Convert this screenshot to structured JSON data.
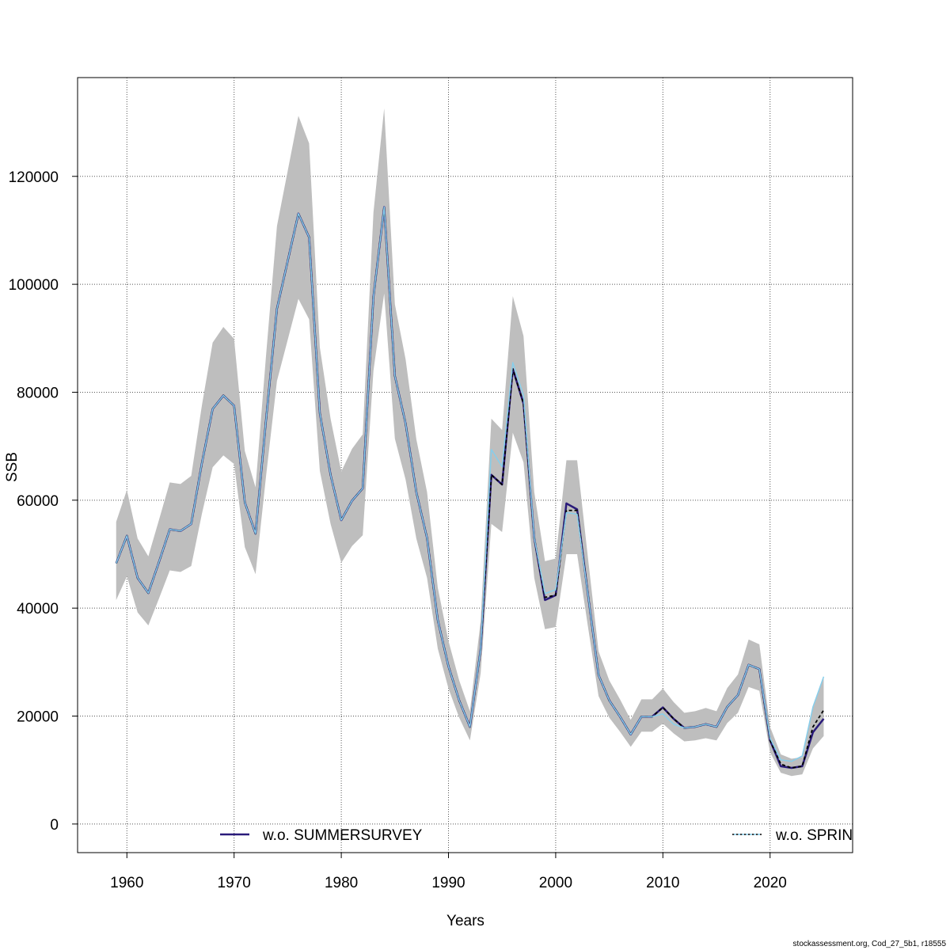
{
  "chart_data": {
    "type": "line",
    "title": "",
    "xlabel": "Years",
    "ylabel": "SSB",
    "xlim": [
      1955.4,
      2027.7
    ],
    "ylim": [
      -5300,
      138300
    ],
    "x_ticks": [
      1960,
      1970,
      1980,
      1990,
      2000,
      2010,
      2020
    ],
    "y_ticks": [
      0,
      20000,
      40000,
      60000,
      80000,
      100000,
      120000
    ],
    "grid": true,
    "legend_placement": "bottom",
    "footer": "stockassessment.org, Cod_27_5b1, r18555",
    "x_start": 1959,
    "band": {
      "color": "#bebebe",
      "upper": [
        56000,
        61900,
        52900,
        49600,
        56400,
        63300,
        63000,
        64500,
        77600,
        89200,
        92100,
        89900,
        69100,
        62400,
        87300,
        110800,
        121000,
        131200,
        126100,
        88300,
        75100,
        65300,
        69500,
        72200,
        113300,
        132600,
        96300,
        86100,
        71300,
        61500,
        43800,
        33900,
        26600,
        20900,
        37600,
        75100,
        73000,
        97800,
        90400,
        61500,
        48700,
        49200,
        67400,
        67400,
        49500,
        32000,
        26600,
        23100,
        19300,
        23100,
        23100,
        25100,
        22600,
        20600,
        20900,
        21500,
        20900,
        25200,
        27700,
        34200,
        33300,
        18000,
        12900,
        12100,
        12400,
        21500,
        27300
      ],
      "lower": [
        41500,
        45900,
        39200,
        36800,
        41800,
        47000,
        46700,
        47800,
        57500,
        66100,
        68300,
        66700,
        51300,
        46300,
        64800,
        82100,
        89700,
        97300,
        93500,
        65400,
        55600,
        48400,
        51500,
        53500,
        84000,
        98300,
        71400,
        63800,
        52900,
        45600,
        32500,
        25100,
        19700,
        15500,
        27900,
        55600,
        54100,
        72500,
        67000,
        45600,
        36100,
        36500,
        50000,
        50000,
        36700,
        23700,
        19700,
        17100,
        14300,
        17100,
        17100,
        18600,
        16800,
        15300,
        15500,
        15900,
        15500,
        18700,
        20600,
        25400,
        24700,
        13300,
        9500,
        8900,
        9200,
        14000,
        16300
      ]
    },
    "series": [
      {
        "color": "#000000",
        "style": "dashed",
        "values": [
          48300,
          53400,
          45600,
          42800,
          48600,
          54600,
          54300,
          55600,
          66900,
          76900,
          79400,
          77500,
          59600,
          53800,
          75300,
          95500,
          104300,
          113100,
          108700,
          76100,
          64700,
          56300,
          59900,
          62200,
          97700,
          114300,
          83000,
          74200,
          61500,
          53000,
          37800,
          29200,
          22900,
          18000,
          32400,
          64700,
          62900,
          84300,
          77900,
          53000,
          42000,
          42400,
          58100,
          58100,
          42700,
          27600,
          22900,
          19900,
          16600,
          19900,
          19900,
          21600,
          19500,
          17800,
          18000,
          18500,
          18000,
          21700,
          23900,
          29500,
          28700,
          15500,
          11100,
          10400,
          10700,
          18000,
          21100
        ]
      },
      {
        "name": "w.o. SUMMERSURVEY",
        "color": "#2a1b7a",
        "style": "solid",
        "values": [
          48300,
          53400,
          45600,
          42800,
          48600,
          54600,
          54300,
          55600,
          66900,
          76900,
          79400,
          77500,
          59600,
          53800,
          75300,
          95500,
          104300,
          113100,
          108700,
          76100,
          64700,
          56300,
          59900,
          62200,
          97700,
          114300,
          83000,
          74200,
          61500,
          53000,
          37800,
          29200,
          22900,
          18000,
          32400,
          64700,
          62900,
          84300,
          77900,
          53000,
          41500,
          42400,
          59400,
          58300,
          42700,
          27600,
          22900,
          19900,
          16600,
          19900,
          19900,
          21600,
          19500,
          17800,
          18000,
          18500,
          18000,
          21700,
          23900,
          29500,
          28700,
          15500,
          10700,
          10400,
          10700,
          17000,
          19500
        ]
      },
      {
        "name": "w.o. SPRIN",
        "color": "#87ceeb",
        "style": "solid",
        "values": [
          48300,
          53400,
          45600,
          42800,
          48600,
          54600,
          54300,
          55600,
          66900,
          76900,
          79400,
          77500,
          59600,
          53800,
          75300,
          95500,
          104300,
          113100,
          108700,
          76100,
          64700,
          56300,
          59900,
          62200,
          97700,
          114300,
          83000,
          74200,
          61500,
          53000,
          37800,
          29200,
          22900,
          18000,
          32400,
          69400,
          66200,
          85500,
          79400,
          53000,
          42700,
          43400,
          57700,
          57400,
          42700,
          27600,
          22900,
          19900,
          16600,
          19900,
          19900,
          20400,
          18500,
          17800,
          18000,
          18500,
          18000,
          21700,
          23900,
          29500,
          28700,
          15900,
          11900,
          11600,
          12600,
          21700,
          27300
        ]
      }
    ]
  }
}
